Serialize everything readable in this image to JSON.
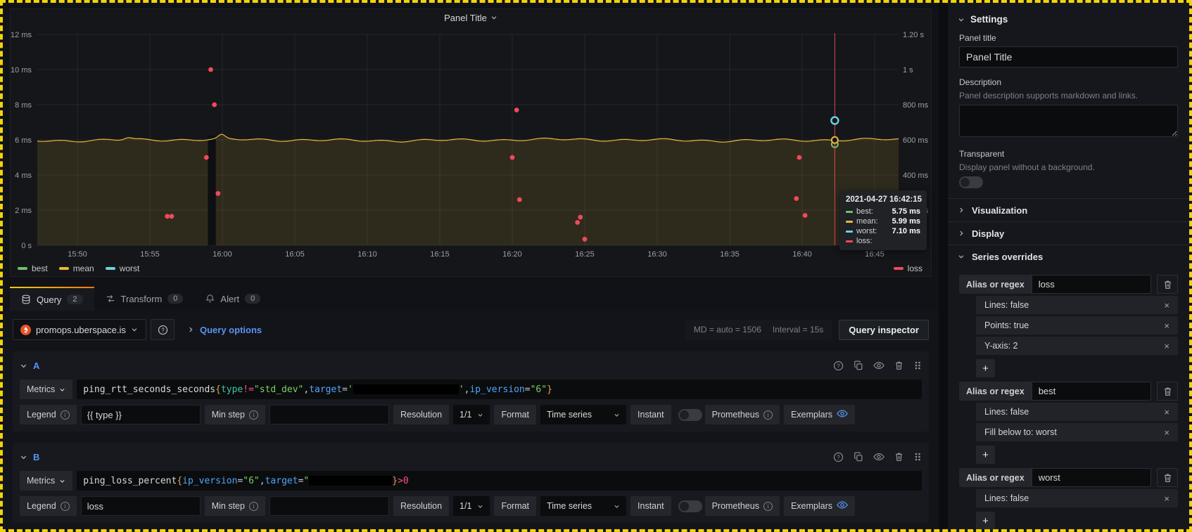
{
  "panel": {
    "title": "Panel Title"
  },
  "chart_data": {
    "type": "line",
    "title": "Panel Title",
    "x_ticks": [
      "15:50",
      "15:55",
      "16:00",
      "16:05",
      "16:10",
      "16:15",
      "16:20",
      "16:25",
      "16:30",
      "16:35",
      "16:40",
      "16:45"
    ],
    "y_left": {
      "ticks": [
        "12 ms",
        "10 ms",
        "8 ms",
        "6 ms",
        "4 ms",
        "2 ms",
        "0 s"
      ],
      "lim_ms": [
        0,
        12.5
      ]
    },
    "y_right": {
      "ticks": [
        "1.20 s",
        "1 s",
        "800 ms",
        "600 ms",
        "400 ms",
        "200 ms",
        "0 s"
      ],
      "lim_s": [
        0,
        1.25
      ]
    },
    "grid": true,
    "legend_position": "bottom",
    "series": [
      {
        "name": "best",
        "color": "#73bf69",
        "style": "hidden-line (Lines: false, fill below to worst)"
      },
      {
        "name": "mean",
        "color": "#eab839",
        "style": "line",
        "baseline_ms": 5.99,
        "noise_ms": 0.1,
        "area_fill": "rgba(234,184,57,0.13)"
      },
      {
        "name": "worst",
        "color": "#6ed0e0",
        "style": "hidden-line (Lines: false)"
      },
      {
        "name": "loss",
        "color": "#f2495c",
        "style": "points",
        "yaxis": 2,
        "points_min_after_1550_vs_s": [
          [
            6.2,
            0.165
          ],
          [
            6.5,
            0.165
          ],
          [
            8.9,
            0.5
          ],
          [
            9.2,
            1.0
          ],
          [
            9.45,
            0.8
          ],
          [
            9.7,
            0.295
          ],
          [
            30.0,
            0.5
          ],
          [
            30.3,
            0.77
          ],
          [
            30.5,
            0.26
          ],
          [
            34.5,
            0.13
          ],
          [
            34.7,
            0.16
          ],
          [
            35.0,
            0.035
          ],
          [
            49.6,
            0.266
          ],
          [
            49.8,
            0.5
          ],
          [
            50.2,
            0.17
          ]
        ]
      }
    ],
    "gap_band_minutes": [
      9.0,
      9.55
    ],
    "crosshair": {
      "minutes": 52.25,
      "color": "#f2495c"
    },
    "hover_markers": [
      {
        "series": "worst",
        "value_ms": 7.1,
        "color": "#6ed0e0"
      },
      {
        "series": "mean",
        "value_ms": 5.99,
        "color": "#eab839"
      },
      {
        "series": "best",
        "value_ms": 5.75,
        "color": "#73bf69"
      }
    ],
    "tooltip": {
      "title": "2021-04-27 16:42:15",
      "rows": [
        {
          "label": "best:",
          "value": "5.75 ms",
          "color": "#73bf69"
        },
        {
          "label": "mean:",
          "value": "5.99 ms",
          "color": "#eab839"
        },
        {
          "label": "worst:",
          "value": "7.10 ms",
          "color": "#6ed0e0"
        },
        {
          "label": "loss:",
          "value": "",
          "color": "#f2495c"
        }
      ]
    },
    "legend": {
      "left": [
        "best",
        "mean",
        "worst"
      ],
      "right": [
        "loss"
      ]
    }
  },
  "query_tabs": [
    {
      "label": "Query",
      "badge": "2"
    },
    {
      "label": "Transform",
      "badge": "0"
    },
    {
      "label": "Alert",
      "badge": "0"
    }
  ],
  "datasource_bar": {
    "name": "promops.uberspace.is",
    "options_label": "Query options",
    "stats": "MD = auto = 1506",
    "interval": "Interval = 15s",
    "inspector_label": "Query inspector"
  },
  "queries": [
    {
      "ref": "A",
      "mode": "Metrics",
      "expr": [
        [
          "ping_rtt_seconds_seconds",
          "nm"
        ],
        [
          "{",
          "br"
        ],
        [
          "type",
          "kg"
        ],
        [
          "!=",
          "op"
        ],
        [
          "\"std_dev\"",
          "st"
        ],
        [
          ", ",
          "pl"
        ],
        [
          "target",
          "kb"
        ],
        [
          "=",
          "pl"
        ],
        [
          "'",
          "st"
        ],
        [
          "",
          "rd",
          "150"
        ],
        [
          "'",
          "st"
        ],
        [
          ", ",
          "pl"
        ],
        [
          "ip_version",
          "kb"
        ],
        [
          "=",
          "pl"
        ],
        [
          "\"6\"",
          "st"
        ],
        [
          "}",
          "br"
        ]
      ],
      "legend_label": "Legend",
      "legend_value": "{{ type }}",
      "min_step_label": "Min step",
      "min_step_value": "",
      "resolution_label": "Resolution",
      "resolution_value": "1/1",
      "format_label": "Format",
      "format_value": "Time series",
      "instant_label": "Instant",
      "ds_label": "Prometheus",
      "exemplars_label": "Exemplars"
    },
    {
      "ref": "B",
      "mode": "Metrics",
      "expr": [
        [
          "ping_loss_percent",
          "nm"
        ],
        [
          "{",
          "br"
        ],
        [
          "ip_version",
          "kb"
        ],
        [
          "=",
          "pl"
        ],
        [
          "\"6\"",
          "st"
        ],
        [
          ", ",
          "pl"
        ],
        [
          "target",
          "kb"
        ],
        [
          "=",
          "pl"
        ],
        [
          "\"",
          "st"
        ],
        [
          "",
          "rd",
          "118"
        ],
        [
          "}",
          "br"
        ],
        [
          " > ",
          "op"
        ],
        [
          "0",
          "op"
        ]
      ],
      "legend_label": "Legend",
      "legend_value": "loss",
      "min_step_label": "Min step",
      "min_step_value": "",
      "resolution_label": "Resolution",
      "resolution_value": "1/1",
      "format_label": "Format",
      "format_value": "Time series",
      "instant_label": "Instant",
      "ds_label": "Prometheus",
      "exemplars_label": "Exemplars"
    }
  ],
  "sidebar": {
    "title": "Settings",
    "panel_title_label": "Panel title",
    "panel_title_value": "Panel Title",
    "description_label": "Description",
    "description_help": "Panel description supports markdown and links.",
    "transparent_label": "Transparent",
    "transparent_help": "Display panel without a background.",
    "sections": [
      {
        "label": "Visualization",
        "state": "collapsed"
      },
      {
        "label": "Display",
        "state": "collapsed"
      },
      {
        "label": "Series overrides",
        "state": "expanded"
      }
    ],
    "overrides": [
      {
        "alias_label": "Alias or regex",
        "alias": "loss",
        "rules": [
          "Lines: false",
          "Points: true",
          "Y-axis: 2"
        ]
      },
      {
        "alias_label": "Alias or regex",
        "alias": "best",
        "rules": [
          "Lines: false",
          "Fill below to: worst"
        ]
      },
      {
        "alias_label": "Alias or regex",
        "alias": "worst",
        "rules": [
          "Lines: false"
        ]
      }
    ],
    "add_label": "+",
    "remove_label": "×"
  }
}
